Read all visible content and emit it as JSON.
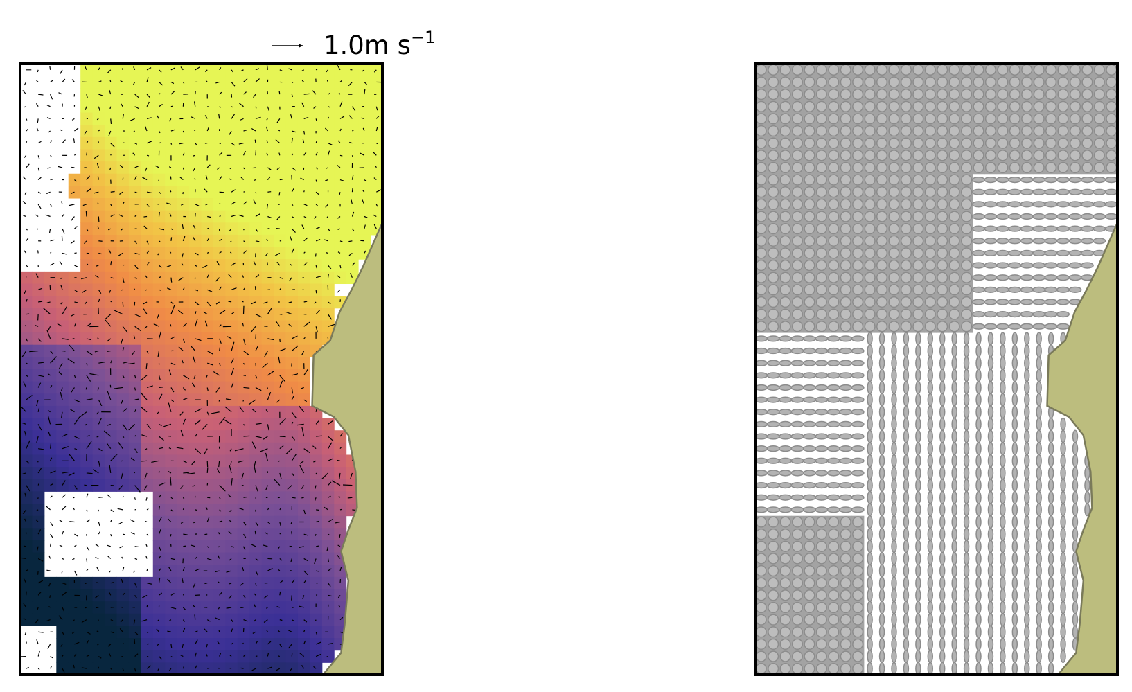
{
  "key": {
    "label": "1.0m s",
    "exponent": "−1"
  }
}
